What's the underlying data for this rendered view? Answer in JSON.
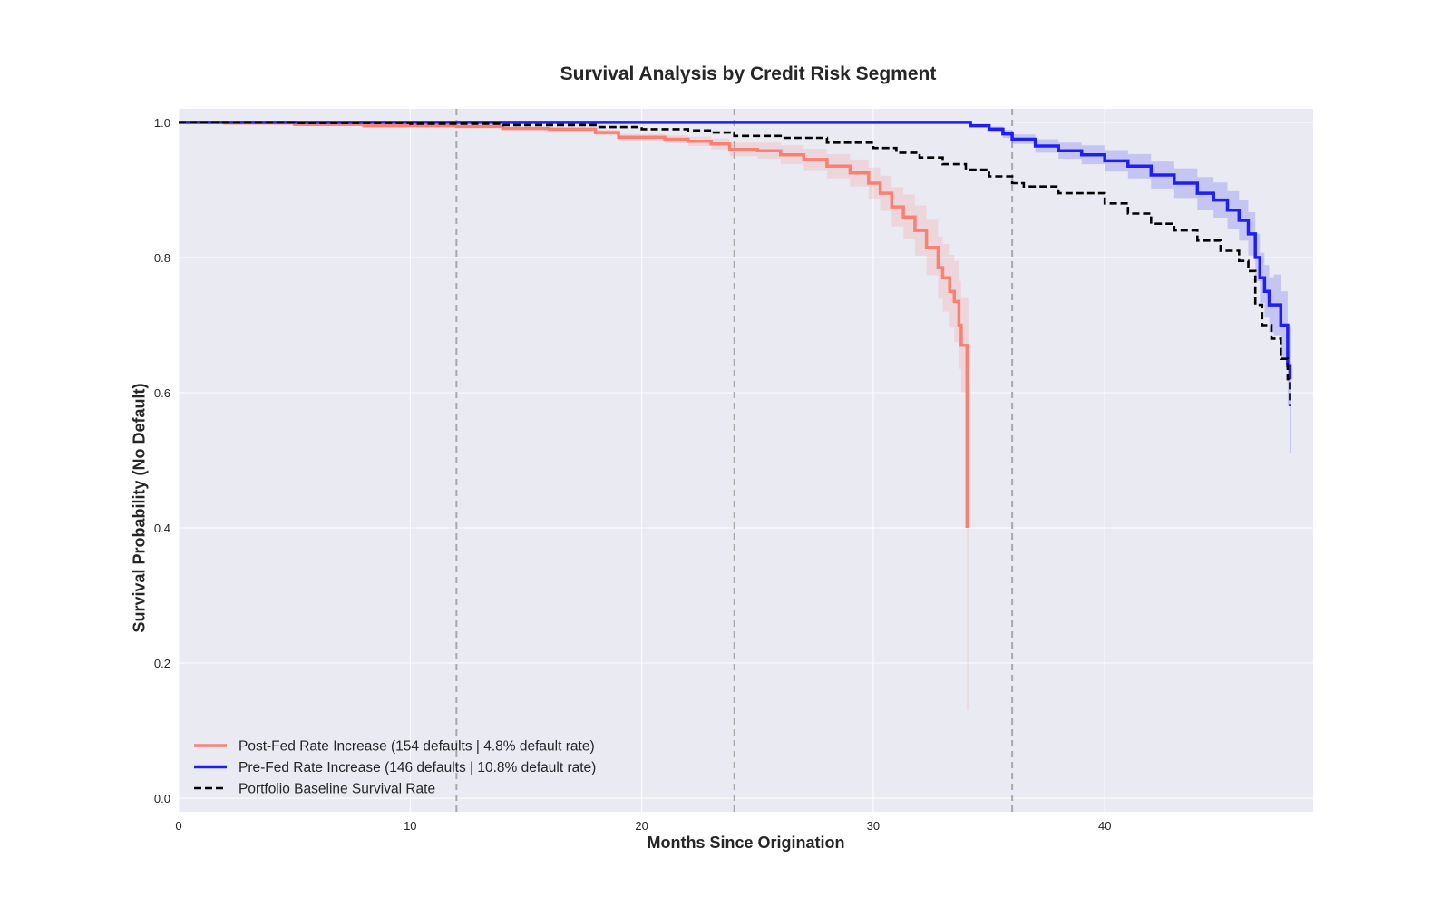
{
  "chart_data": {
    "type": "line",
    "title": "Survival Analysis by Credit Risk Segment",
    "xlabel": "Months Since Origination",
    "ylabel": "Survival Probability (No Default)",
    "xlim": [
      0,
      49
    ],
    "ylim": [
      -0.02,
      1.02
    ],
    "xticks": [
      0,
      10,
      20,
      30,
      40
    ],
    "yticks": [
      0.0,
      0.2,
      0.4,
      0.6,
      0.8,
      1.0
    ],
    "grid": true,
    "legend_position": "lower-left",
    "vlines": [
      12,
      24,
      36
    ],
    "colors": {
      "background": "#eaeaf2",
      "grid": "#ffffff",
      "vline": "#a9a9a9"
    },
    "series": [
      {
        "name": "Post-Fed Rate Increase (154 defaults | 4.8% default rate)",
        "color": "#fa8072",
        "style": "solid",
        "x": [
          0,
          2,
          5,
          8,
          10,
          12,
          14,
          16,
          18,
          19,
          21,
          22,
          23,
          23.8,
          25,
          26,
          27,
          28,
          29,
          29.8,
          30.3,
          30.8,
          31.3,
          31.8,
          32.3,
          32.8,
          33.0,
          33.3,
          33.5,
          33.7,
          33.8,
          34.0,
          34.05
        ],
        "y": [
          1.0,
          0.999,
          0.997,
          0.995,
          0.995,
          0.994,
          0.991,
          0.99,
          0.985,
          0.978,
          0.975,
          0.972,
          0.968,
          0.96,
          0.958,
          0.952,
          0.945,
          0.935,
          0.925,
          0.91,
          0.895,
          0.875,
          0.86,
          0.84,
          0.815,
          0.785,
          0.77,
          0.75,
          0.735,
          0.7,
          0.67,
          0.67,
          0.4
        ],
        "ci_lower": [
          1.0,
          0.999,
          0.997,
          0.994,
          0.993,
          0.992,
          0.989,
          0.987,
          0.981,
          0.973,
          0.969,
          0.965,
          0.96,
          0.95,
          0.946,
          0.938,
          0.929,
          0.917,
          0.905,
          0.887,
          0.869,
          0.846,
          0.827,
          0.803,
          0.774,
          0.739,
          0.72,
          0.696,
          0.675,
          0.635,
          0.6,
          0.585,
          0.13
        ],
        "ci_upper": [
          1.0,
          1.0,
          0.998,
          0.996,
          0.996,
          0.996,
          0.993,
          0.993,
          0.989,
          0.983,
          0.981,
          0.979,
          0.976,
          0.97,
          0.97,
          0.966,
          0.961,
          0.953,
          0.945,
          0.933,
          0.921,
          0.904,
          0.893,
          0.877,
          0.856,
          0.831,
          0.82,
          0.804,
          0.795,
          0.765,
          0.74,
          0.74,
          0.74
        ]
      },
      {
        "name": "Pre-Fed Rate Increase (146 defaults | 10.8% default rate)",
        "color": "#1f1ff5",
        "style": "solid",
        "x": [
          0,
          10,
          20,
          30,
          34,
          34.2,
          35,
          35.6,
          36,
          37,
          38,
          39,
          40,
          41,
          42,
          43,
          44,
          44.7,
          45.3,
          45.8,
          46.2,
          46.5,
          46.7,
          46.9,
          47.1,
          47.3,
          47.6,
          47.9,
          48.0
        ],
        "y": [
          1.0,
          1.0,
          1.0,
          1.0,
          1.0,
          0.995,
          0.99,
          0.983,
          0.975,
          0.965,
          0.958,
          0.952,
          0.943,
          0.935,
          0.922,
          0.91,
          0.895,
          0.885,
          0.87,
          0.855,
          0.835,
          0.8,
          0.77,
          0.75,
          0.73,
          0.73,
          0.7,
          0.64,
          0.62
        ],
        "ci_lower": [
          1.0,
          1.0,
          1.0,
          1.0,
          1.0,
          0.993,
          0.986,
          0.977,
          0.968,
          0.955,
          0.946,
          0.938,
          0.927,
          0.917,
          0.902,
          0.888,
          0.871,
          0.859,
          0.842,
          0.825,
          0.803,
          0.765,
          0.733,
          0.711,
          0.689,
          0.685,
          0.65,
          0.58,
          0.51
        ],
        "ci_upper": [
          1.0,
          1.0,
          1.0,
          1.0,
          1.0,
          0.997,
          0.994,
          0.989,
          0.982,
          0.975,
          0.97,
          0.966,
          0.959,
          0.953,
          0.942,
          0.932,
          0.919,
          0.911,
          0.898,
          0.885,
          0.867,
          0.835,
          0.807,
          0.789,
          0.771,
          0.775,
          0.75,
          0.7,
          0.7
        ]
      },
      {
        "name": "Portfolio Baseline Survival Rate",
        "color": "#000000",
        "style": "dashed",
        "x": [
          0,
          5,
          10,
          14,
          18,
          20,
          22,
          23,
          24,
          26,
          28,
          30,
          31,
          32,
          33,
          34,
          35,
          36,
          36.5,
          38,
          40,
          41,
          42,
          43,
          44,
          45,
          45.8,
          46.2,
          46.5,
          46.8,
          47.2,
          47.6,
          47.9,
          48.0
        ],
        "y": [
          1.0,
          0.999,
          0.998,
          0.996,
          0.993,
          0.99,
          0.988,
          0.985,
          0.98,
          0.977,
          0.97,
          0.962,
          0.955,
          0.948,
          0.938,
          0.93,
          0.92,
          0.91,
          0.905,
          0.895,
          0.88,
          0.865,
          0.85,
          0.84,
          0.825,
          0.81,
          0.795,
          0.78,
          0.73,
          0.7,
          0.68,
          0.65,
          0.62,
          0.58
        ],
        "ci_lower": [],
        "ci_upper": []
      }
    ]
  }
}
